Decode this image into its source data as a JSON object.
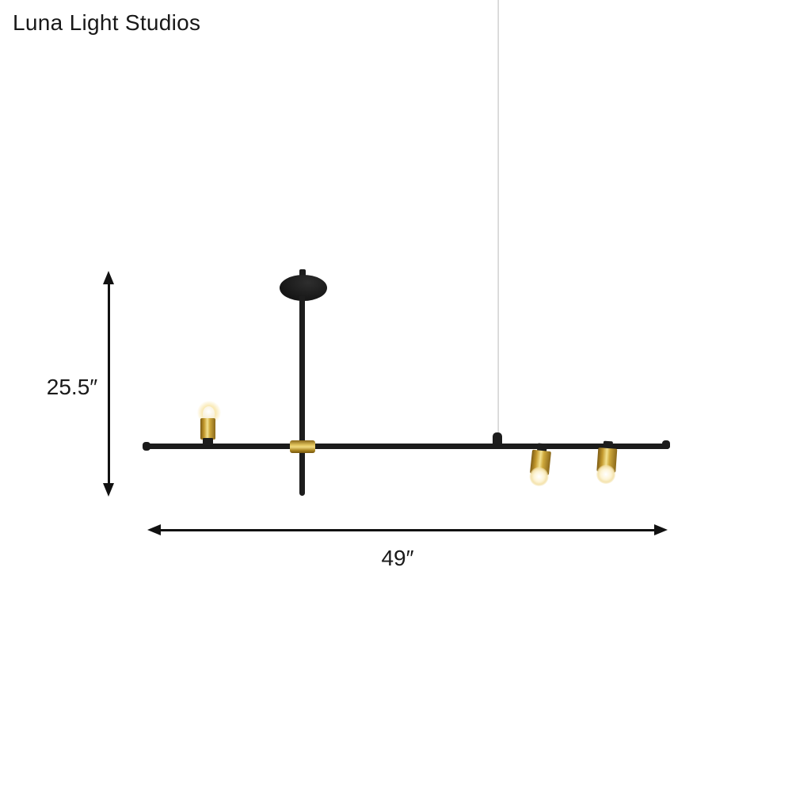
{
  "watermark": {
    "brand": "Luna Light Studios"
  },
  "dimensions": {
    "height_label": "25.5″",
    "width_label": "49″"
  },
  "product": {
    "description": "linear pendant light, black rod with brass cylinder sockets, one up-facing bulb and two down-facing bulbs, round ceiling canopy and suspension cable",
    "colors": {
      "background": "#ffffff",
      "fixture_black": "#1d1d1d",
      "brass_mid": "#c49a2e",
      "brass_highlight": "#f3e291",
      "brass_shadow": "#7e5d14",
      "cable_gray": "#d8d8d8",
      "bulb_glow": "#fdf3d3",
      "annotation_black": "#111111"
    }
  }
}
